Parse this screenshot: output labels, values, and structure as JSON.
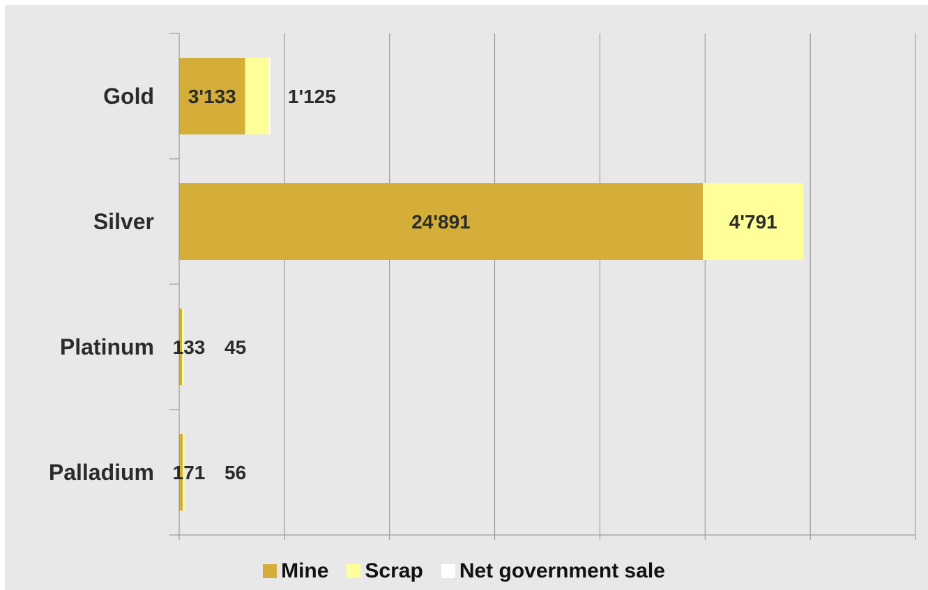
{
  "chart_data": {
    "type": "bar",
    "orientation": "horizontal",
    "stacked": true,
    "categories": [
      "Gold",
      "Silver",
      "Platinum",
      "Palladium"
    ],
    "series": [
      {
        "name": "Mine",
        "color": "#d4ae38",
        "values": [
          3133,
          24891,
          133,
          171
        ],
        "labels": [
          "3'133",
          "24'891",
          "133",
          "171"
        ]
      },
      {
        "name": "Scrap",
        "color": "#ffff99",
        "values": [
          1125,
          4791,
          45,
          56
        ],
        "labels": [
          "1'125",
          "4'791",
          "45",
          "56"
        ]
      },
      {
        "name": "Net government sale",
        "color": "#ffffff",
        "values": [
          80,
          0,
          0,
          0
        ],
        "labels": [
          "",
          "",
          "",
          ""
        ]
      }
    ],
    "xlim": [
      0,
      35000
    ],
    "grid": true,
    "legend": "bottom",
    "xlabel": "",
    "ylabel": ""
  },
  "colors": {
    "background": "#e8e8e8",
    "gridline": "#8c8c8c",
    "text": "#2b2b2b"
  }
}
